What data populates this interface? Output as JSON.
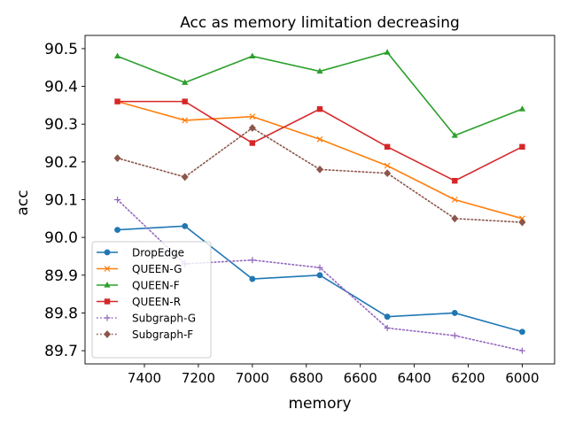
{
  "chart_data": {
    "type": "line",
    "title": "Acc as memory limitation decreasing",
    "xlabel": "memory",
    "ylabel": "acc",
    "x": [
      7500,
      7250,
      7000,
      6750,
      6500,
      6250,
      6000
    ],
    "xlim": [
      7620,
      5880
    ],
    "ylim": [
      89.665,
      90.535
    ],
    "xticks": [
      7400,
      7200,
      7000,
      6800,
      6600,
      6400,
      6200,
      6000
    ],
    "yticks": [
      89.7,
      89.8,
      89.9,
      90.0,
      90.1,
      90.2,
      90.3,
      90.4,
      90.5
    ],
    "xtick_labels": [
      "7400",
      "7200",
      "7000",
      "6800",
      "6600",
      "6400",
      "6200",
      "6000"
    ],
    "ytick_labels": [
      "89.7",
      "89.8",
      "89.9",
      "90.0",
      "90.1",
      "90.2",
      "90.3",
      "90.4",
      "90.5"
    ],
    "x_inverted": true,
    "grid": false,
    "legend_position": "lower-left",
    "series": [
      {
        "name": "DropEdge",
        "color": "#1f77b4",
        "marker": "circle",
        "linestyle": "solid",
        "values": [
          90.02,
          90.03,
          89.89,
          89.9,
          89.79,
          89.8,
          89.75
        ]
      },
      {
        "name": "QUEEN-G",
        "color": "#ff7f0e",
        "marker": "x",
        "linestyle": "solid",
        "values": [
          90.36,
          90.31,
          90.32,
          90.26,
          90.19,
          90.1,
          90.05
        ]
      },
      {
        "name": "QUEEN-F",
        "color": "#2ca02c",
        "marker": "triangle",
        "linestyle": "solid",
        "values": [
          90.48,
          90.41,
          90.48,
          90.44,
          90.49,
          90.27,
          90.34
        ]
      },
      {
        "name": "QUEEN-R",
        "color": "#d62728",
        "marker": "square",
        "linestyle": "solid",
        "values": [
          90.36,
          90.36,
          90.25,
          90.34,
          90.24,
          90.15,
          90.24
        ]
      },
      {
        "name": "Subgraph-G",
        "color": "#9467bd",
        "marker": "plus",
        "linestyle": "dotted",
        "values": [
          90.1,
          89.93,
          89.94,
          89.92,
          89.76,
          89.74,
          89.7
        ]
      },
      {
        "name": "Subgraph-F",
        "color": "#8c564b",
        "marker": "diamond",
        "linestyle": "dotted",
        "values": [
          90.21,
          90.16,
          90.29,
          90.18,
          90.17,
          90.05,
          90.04
        ]
      }
    ]
  }
}
